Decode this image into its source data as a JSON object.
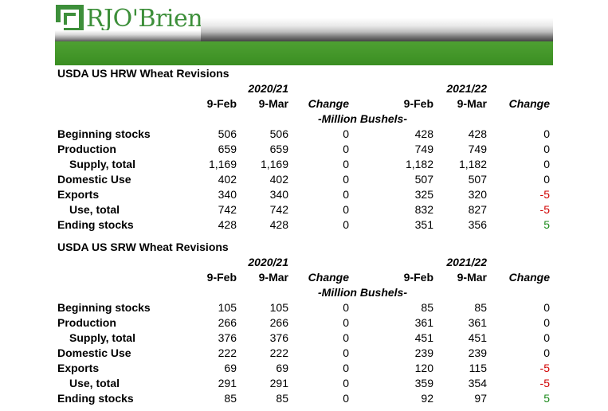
{
  "brand": {
    "name": "RJO'Brien"
  },
  "tables": [
    {
      "title": "USDA US HRW Wheat Revisions",
      "year1": "2020/21",
      "year2": "2021/22",
      "columns": [
        "9-Feb",
        "9-Mar",
        "Change",
        "9-Feb",
        "9-Mar",
        "Change"
      ],
      "unit": "-Million Bushels-",
      "rows": [
        {
          "label": "Beginning stocks",
          "values": [
            "506",
            "506",
            "0",
            "428",
            "428",
            "0"
          ]
        },
        {
          "label": "Production",
          "values": [
            "659",
            "659",
            "0",
            "749",
            "749",
            "0"
          ]
        },
        {
          "label": "Supply, total",
          "values": [
            "1,169",
            "1,169",
            "0",
            "1,182",
            "1,182",
            "0"
          ]
        },
        {
          "label": "Domestic Use",
          "values": [
            "402",
            "402",
            "0",
            "507",
            "507",
            "0"
          ]
        },
        {
          "label": "Exports",
          "values": [
            "340",
            "340",
            "0",
            "325",
            "320",
            "-5"
          ]
        },
        {
          "label": "Use, total",
          "values": [
            "742",
            "742",
            "0",
            "832",
            "827",
            "-5"
          ]
        },
        {
          "label": "Ending stocks",
          "values": [
            "428",
            "428",
            "0",
            "351",
            "356",
            "5"
          ]
        }
      ]
    },
    {
      "title": "USDA US SRW Wheat Revisions",
      "year1": "2020/21",
      "year2": "2021/22",
      "columns": [
        "9-Feb",
        "9-Mar",
        "Change",
        "9-Feb",
        "9-Mar",
        "Change"
      ],
      "unit": "-Million Bushels-",
      "rows": [
        {
          "label": "Beginning stocks",
          "values": [
            "105",
            "105",
            "0",
            "85",
            "85",
            "0"
          ]
        },
        {
          "label": "Production",
          "values": [
            "266",
            "266",
            "0",
            "361",
            "361",
            "0"
          ]
        },
        {
          "label": "Supply, total",
          "values": [
            "376",
            "376",
            "0",
            "451",
            "451",
            "0"
          ]
        },
        {
          "label": "Domestic Use",
          "values": [
            "222",
            "222",
            "0",
            "239",
            "239",
            "0"
          ]
        },
        {
          "label": "Exports",
          "values": [
            "69",
            "69",
            "0",
            "120",
            "115",
            "-5"
          ]
        },
        {
          "label": "Use, total",
          "values": [
            "291",
            "291",
            "0",
            "359",
            "354",
            "-5"
          ]
        },
        {
          "label": "Ending stocks",
          "values": [
            "85",
            "85",
            "0",
            "92",
            "97",
            "5"
          ]
        }
      ]
    }
  ],
  "colors": {
    "brand_green": "#3d8f3a",
    "negative": "#d10000",
    "positive": "#1a8a1a"
  }
}
